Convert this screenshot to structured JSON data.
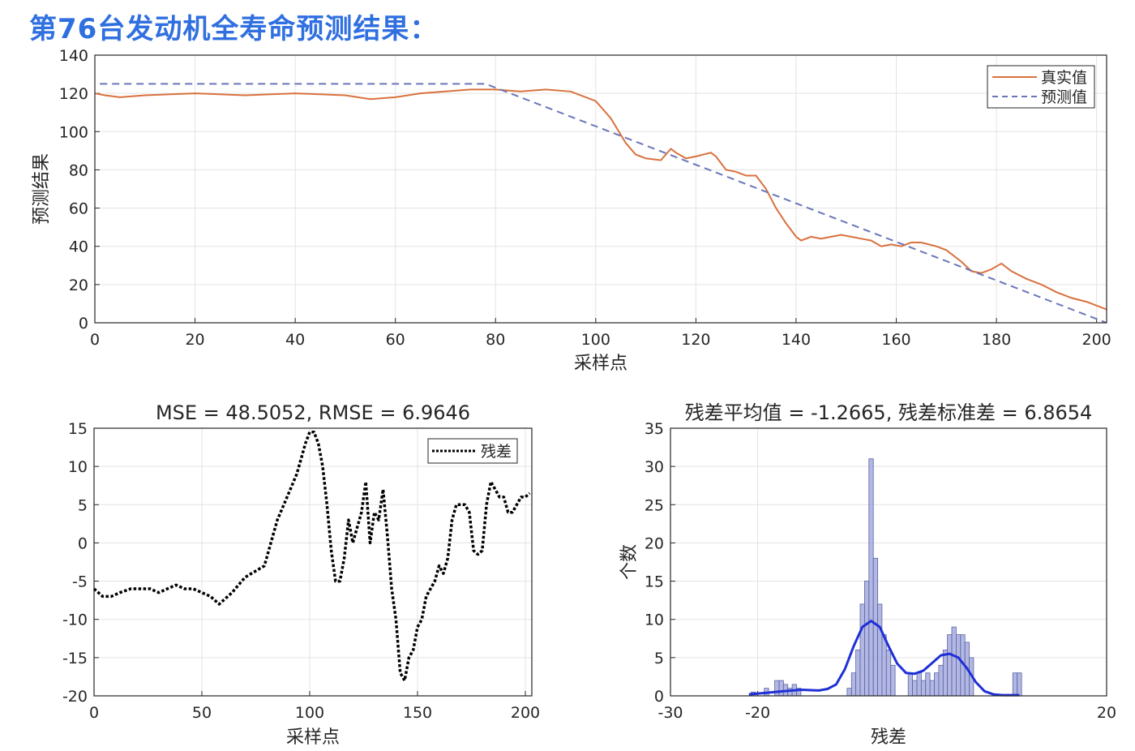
{
  "page": {
    "title": "第76台发动机全寿命预测结果："
  },
  "chart_data": [
    {
      "type": "line",
      "title": "",
      "xlabel": "采样点",
      "ylabel": "预测结果",
      "xlim": [
        0,
        202
      ],
      "ylim": [
        0,
        140
      ],
      "xticks": [
        0,
        20,
        40,
        60,
        80,
        100,
        120,
        140,
        160,
        180,
        200
      ],
      "yticks": [
        0,
        20,
        40,
        60,
        80,
        100,
        120,
        140
      ],
      "grid": true,
      "legend": "top-right",
      "series": [
        {
          "name": "真实值",
          "color": "#d9713e",
          "style": "solid",
          "x": [
            0,
            2,
            5,
            10,
            20,
            30,
            40,
            50,
            55,
            60,
            65,
            70,
            75,
            80,
            85,
            90,
            95,
            100,
            103,
            106,
            108,
            110,
            113,
            115,
            116,
            118,
            120,
            123,
            124,
            126,
            128,
            130,
            132,
            134,
            136,
            138,
            140,
            141,
            143,
            145,
            147,
            149,
            151,
            153,
            155,
            157,
            159,
            161,
            163,
            165,
            168,
            170,
            173,
            175,
            177,
            179,
            181,
            183,
            186,
            189,
            192,
            195,
            198,
            200,
            202
          ],
          "y": [
            120,
            119,
            118,
            119,
            120,
            119,
            120,
            119,
            117,
            118,
            120,
            121,
            122,
            122,
            121,
            122,
            121,
            116,
            107,
            94,
            88,
            86,
            85,
            91,
            89,
            86,
            87,
            89,
            87,
            80,
            79,
            77,
            77,
            70,
            60,
            52,
            45,
            43,
            45,
            44,
            45,
            46,
            45,
            44,
            43,
            40,
            41,
            40,
            42,
            42,
            40,
            38,
            32,
            27,
            26,
            28,
            31,
            27,
            23,
            20,
            16,
            13,
            11,
            9,
            7
          ]
        },
        {
          "name": "预测值",
          "color": "#6a76b8",
          "style": "dashed",
          "x": [
            1,
            78,
            202
          ],
          "y": [
            125,
            125,
            0
          ]
        }
      ]
    },
    {
      "type": "line",
      "title": "MSE = 48.5052, RMSE = 6.9646",
      "xlabel": "采样点",
      "ylabel": "",
      "xlim": [
        0,
        203
      ],
      "ylim": [
        -20,
        15
      ],
      "xticks": [
        0,
        50,
        100,
        150,
        200
      ],
      "yticks": [
        -20,
        -15,
        -10,
        -5,
        0,
        5,
        10,
        15
      ],
      "grid": true,
      "legend": "top-right",
      "series": [
        {
          "name": "残差",
          "color": "#000000",
          "style": "dotted",
          "x": [
            0,
            4,
            8,
            12,
            17,
            22,
            26,
            30,
            34,
            38,
            42,
            46,
            50,
            54,
            58,
            62,
            64,
            67,
            70,
            73,
            76,
            79,
            82,
            85,
            88,
            91,
            94,
            96,
            98,
            100,
            102,
            104,
            106,
            108,
            110,
            112,
            114,
            116,
            118,
            120,
            122,
            124,
            126,
            128,
            130,
            132,
            134,
            136,
            138,
            140,
            142,
            144,
            146,
            148,
            150,
            152,
            154,
            156,
            158,
            160,
            162,
            164,
            166,
            168,
            170,
            172,
            174,
            176,
            178,
            180,
            182,
            184,
            186,
            188,
            190,
            192,
            194,
            196,
            198,
            200,
            202
          ],
          "y": [
            -6,
            -7,
            -7,
            -6.5,
            -6,
            -6,
            -6,
            -6.5,
            -6,
            -5.5,
            -6,
            -6,
            -6.5,
            -7,
            -8,
            -7,
            -6.5,
            -5.5,
            -4.5,
            -4,
            -3.5,
            -3,
            0,
            3,
            5,
            7,
            9,
            11,
            13,
            14.5,
            14.5,
            13,
            10,
            5,
            -1,
            -5,
            -5,
            -2,
            3,
            0,
            2,
            4,
            8,
            0,
            4,
            3,
            7,
            1,
            -6,
            -10,
            -17,
            -18,
            -15,
            -14,
            -11,
            -10,
            -7,
            -6,
            -5,
            -3,
            -4,
            -2,
            3,
            5,
            5,
            5,
            4,
            -1,
            -1.5,
            -1,
            5,
            8,
            7,
            6,
            6,
            4,
            4,
            5,
            6,
            6,
            6.5
          ]
        }
      ]
    },
    {
      "type": "bar",
      "title": "残差平均值 = -1.2665, 残差标准差 = 6.8654",
      "xlabel": "残差",
      "ylabel": "个数",
      "xlim": [
        -30,
        20
      ],
      "ylim": [
        0,
        35
      ],
      "xticks": [
        -30,
        -20,
        20
      ],
      "yticks": [
        0,
        5,
        10,
        15,
        20,
        25,
        30,
        35
      ],
      "grid": true,
      "bar_color": "#9aa0d8",
      "bins": [
        {
          "x": -20.5,
          "value": 0.5
        },
        {
          "x": -19,
          "value": 1
        },
        {
          "x": -17.8,
          "value": 2
        },
        {
          "x": -17.3,
          "value": 2
        },
        {
          "x": -16.8,
          "value": 1.5
        },
        {
          "x": -16.3,
          "value": 1
        },
        {
          "x": -15.8,
          "value": 1.5
        },
        {
          "x": -15.3,
          "value": 1
        },
        {
          "x": -9.5,
          "value": 1
        },
        {
          "x": -9,
          "value": 3
        },
        {
          "x": -8.5,
          "value": 6
        },
        {
          "x": -8,
          "value": 12
        },
        {
          "x": -7.5,
          "value": 15
        },
        {
          "x": -7,
          "value": 31
        },
        {
          "x": -6.5,
          "value": 18
        },
        {
          "x": -6,
          "value": 12
        },
        {
          "x": -5.5,
          "value": 8
        },
        {
          "x": -5,
          "value": 6
        },
        {
          "x": -4.5,
          "value": 4
        },
        {
          "x": -2.5,
          "value": 3
        },
        {
          "x": -2,
          "value": 2
        },
        {
          "x": -1.5,
          "value": 3
        },
        {
          "x": -1,
          "value": 2
        },
        {
          "x": -0.5,
          "value": 3
        },
        {
          "x": 0,
          "value": 2
        },
        {
          "x": 0.5,
          "value": 3
        },
        {
          "x": 1,
          "value": 4
        },
        {
          "x": 1.5,
          "value": 6
        },
        {
          "x": 2,
          "value": 8
        },
        {
          "x": 2.5,
          "value": 9
        },
        {
          "x": 3,
          "value": 8
        },
        {
          "x": 3.5,
          "value": 8
        },
        {
          "x": 4,
          "value": 7
        },
        {
          "x": 4.5,
          "value": 5
        },
        {
          "x": 9.5,
          "value": 3
        },
        {
          "x": 10,
          "value": 3
        }
      ],
      "curve": {
        "color": "#1f2fd6",
        "x": [
          -21,
          -19,
          -17,
          -15,
          -13,
          -12,
          -11,
          -10,
          -9,
          -8,
          -7,
          -6,
          -5,
          -4,
          -3,
          -2,
          -1,
          0,
          1,
          2,
          3,
          4,
          5,
          6,
          7,
          8,
          9,
          10
        ],
        "y": [
          0.2,
          0.4,
          0.6,
          0.8,
          0.7,
          0.9,
          1.5,
          3.5,
          6.5,
          9,
          9.8,
          9.0,
          6.5,
          4.2,
          3.0,
          2.9,
          3.3,
          4.3,
          5.3,
          5.5,
          5.0,
          3.6,
          1.8,
          0.6,
          0.2,
          0.1,
          0.1,
          0.1
        ]
      }
    }
  ]
}
